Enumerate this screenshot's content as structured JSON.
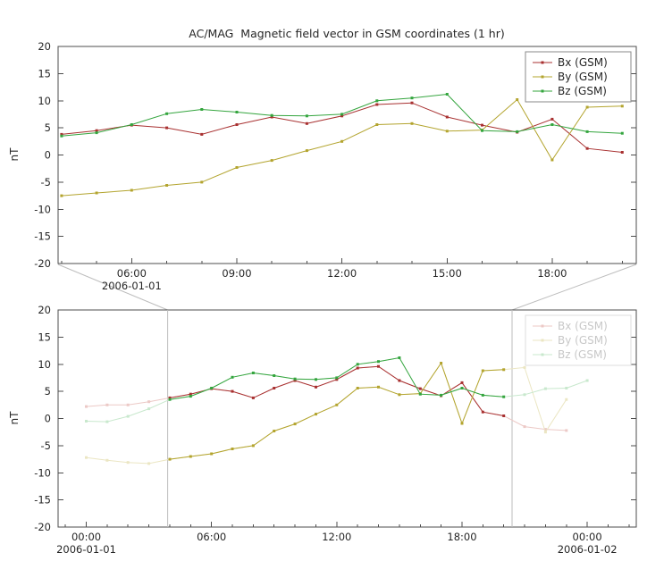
{
  "app": {
    "background": "#ffffff"
  },
  "colors": {
    "bx": "#a83030",
    "by": "#b3a42e",
    "bz": "#34a53e",
    "bx_faded": "#ecc9c6",
    "by_faded": "#ebe6c3",
    "bz_faded": "#c8e8cd",
    "axis": "#4d4d4d",
    "text": "#262626",
    "faded_text": "#c8c8c8",
    "connector": "#bdbdbd",
    "legend_border": "#8a8a8a",
    "legend_border_faded": "#dcdcdc"
  },
  "chart_data": [
    {
      "type": "line",
      "title": "AC/MAG  Magnetic field vector in GSM coordinates (1 hr)",
      "ylabel": "nT",
      "ylim": [
        -20,
        20
      ],
      "yticks": [
        -20,
        -15,
        -10,
        -5,
        0,
        5,
        10,
        15,
        20
      ],
      "xlim_hours": [
        3.9,
        20.4
      ],
      "xticks": [
        {
          "hour": 6,
          "label": "06:00",
          "date": "2006-01-01"
        },
        {
          "hour": 9,
          "label": "09:00"
        },
        {
          "hour": 12,
          "label": "12:00"
        },
        {
          "hour": 15,
          "label": "15:00"
        },
        {
          "hour": 18,
          "label": "18:00"
        }
      ],
      "x_hours": [
        4,
        5,
        6,
        7,
        8,
        9,
        10,
        11,
        12,
        13,
        14,
        15,
        16,
        17,
        18,
        19,
        20
      ],
      "series": [
        {
          "name": "Bx (GSM)",
          "color_key": "bx",
          "values": [
            3.8,
            4.5,
            5.5,
            5.0,
            3.8,
            5.6,
            7.0,
            5.8,
            7.2,
            9.3,
            9.6,
            7.0,
            5.5,
            4.2,
            6.6,
            1.2,
            0.5
          ]
        },
        {
          "name": "By (GSM)",
          "color_key": "by",
          "values": [
            -7.5,
            -7.0,
            -6.5,
            -5.6,
            -5.0,
            -2.3,
            -1.0,
            0.8,
            2.5,
            5.6,
            5.8,
            4.4,
            4.6,
            10.2,
            -0.9,
            8.8,
            9.0
          ]
        },
        {
          "name": "Bz (GSM)",
          "color_key": "bz",
          "values": [
            3.5,
            4.1,
            5.6,
            7.6,
            8.4,
            7.9,
            7.3,
            7.2,
            7.5,
            10.0,
            10.5,
            11.2,
            4.5,
            4.3,
            5.6,
            4.3,
            4.0
          ]
        }
      ],
      "legend": true,
      "faded": false
    },
    {
      "type": "line",
      "title": "",
      "ylabel": "nT",
      "ylim": [
        -20,
        20
      ],
      "yticks": [
        -20,
        -15,
        -10,
        -5,
        0,
        5,
        10,
        15,
        20
      ],
      "xlim_hours": [
        -1.35,
        26.35
      ],
      "xticks": [
        {
          "hour": 0,
          "label": "00:00",
          "date": "2006-01-01"
        },
        {
          "hour": 6,
          "label": "06:00"
        },
        {
          "hour": 12,
          "label": "12:00"
        },
        {
          "hour": 18,
          "label": "18:00"
        },
        {
          "hour": 24,
          "label": "00:00",
          "date": "2006-01-02"
        }
      ],
      "x_hours": [
        0,
        1,
        2,
        3,
        4,
        5,
        6,
        7,
        8,
        9,
        10,
        11,
        12,
        13,
        14,
        15,
        16,
        17,
        18,
        19,
        20,
        21,
        22,
        23,
        24
      ],
      "highlight_region": [
        3.9,
        20.4
      ],
      "series": [
        {
          "name": "Bx (GSM)",
          "color_key": "bx",
          "values": [
            2.2,
            2.5,
            2.5,
            3.1,
            3.8,
            4.5,
            5.5,
            5.0,
            3.8,
            5.6,
            7.0,
            5.8,
            7.2,
            9.3,
            9.6,
            7.0,
            5.5,
            4.2,
            6.6,
            1.2,
            0.5,
            -1.5,
            -2.0,
            -2.2,
            null
          ]
        },
        {
          "name": "By (GSM)",
          "color_key": "by",
          "values": [
            -7.2,
            -7.7,
            -8.1,
            -8.3,
            -7.5,
            -7.0,
            -6.5,
            -5.6,
            -5.0,
            -2.3,
            -1.0,
            0.8,
            2.5,
            5.6,
            5.8,
            4.4,
            4.6,
            10.2,
            -0.9,
            8.8,
            9.0,
            9.4,
            -2.5,
            3.5,
            null
          ]
        },
        {
          "name": "Bz (GSM)",
          "color_key": "bz",
          "values": [
            -0.5,
            -0.6,
            0.4,
            1.8,
            3.5,
            4.1,
            5.6,
            7.6,
            8.4,
            7.9,
            7.3,
            7.2,
            7.5,
            10.0,
            10.5,
            11.2,
            4.5,
            4.3,
            5.6,
            4.3,
            4.0,
            4.4,
            5.5,
            5.6,
            7.0
          ]
        }
      ],
      "legend": true,
      "faded": true
    }
  ]
}
